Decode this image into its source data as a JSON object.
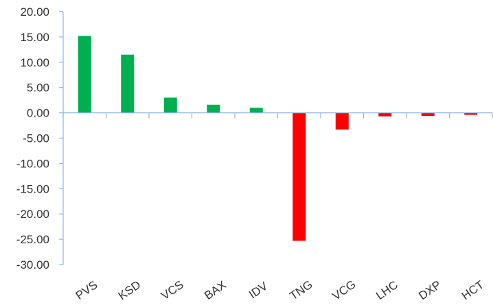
{
  "chart_data": {
    "type": "bar",
    "title": "",
    "xlabel": "",
    "ylabel": "",
    "categories": [
      "PVS",
      "KSD",
      "VCS",
      "BAX",
      "IDV",
      "TNG",
      "VCG",
      "LHC",
      "DXP",
      "HCT"
    ],
    "values": [
      15.2,
      11.5,
      3.0,
      1.6,
      1.0,
      -25.3,
      -3.3,
      -0.7,
      -0.6,
      -0.4
    ],
    "ylim": [
      -30,
      20
    ],
    "yticks": [
      "20.00",
      "15.00",
      "10.00",
      "5.00",
      "0.00",
      "-5.00",
      "-10.00",
      "-15.00",
      "-20.00",
      "-25.00",
      "-30.00"
    ],
    "grid": false,
    "legend": "none",
    "colors": {
      "positive": "#00b050",
      "negative": "#ff0000",
      "axis": "#8eb4e3",
      "text": "#333333"
    }
  }
}
